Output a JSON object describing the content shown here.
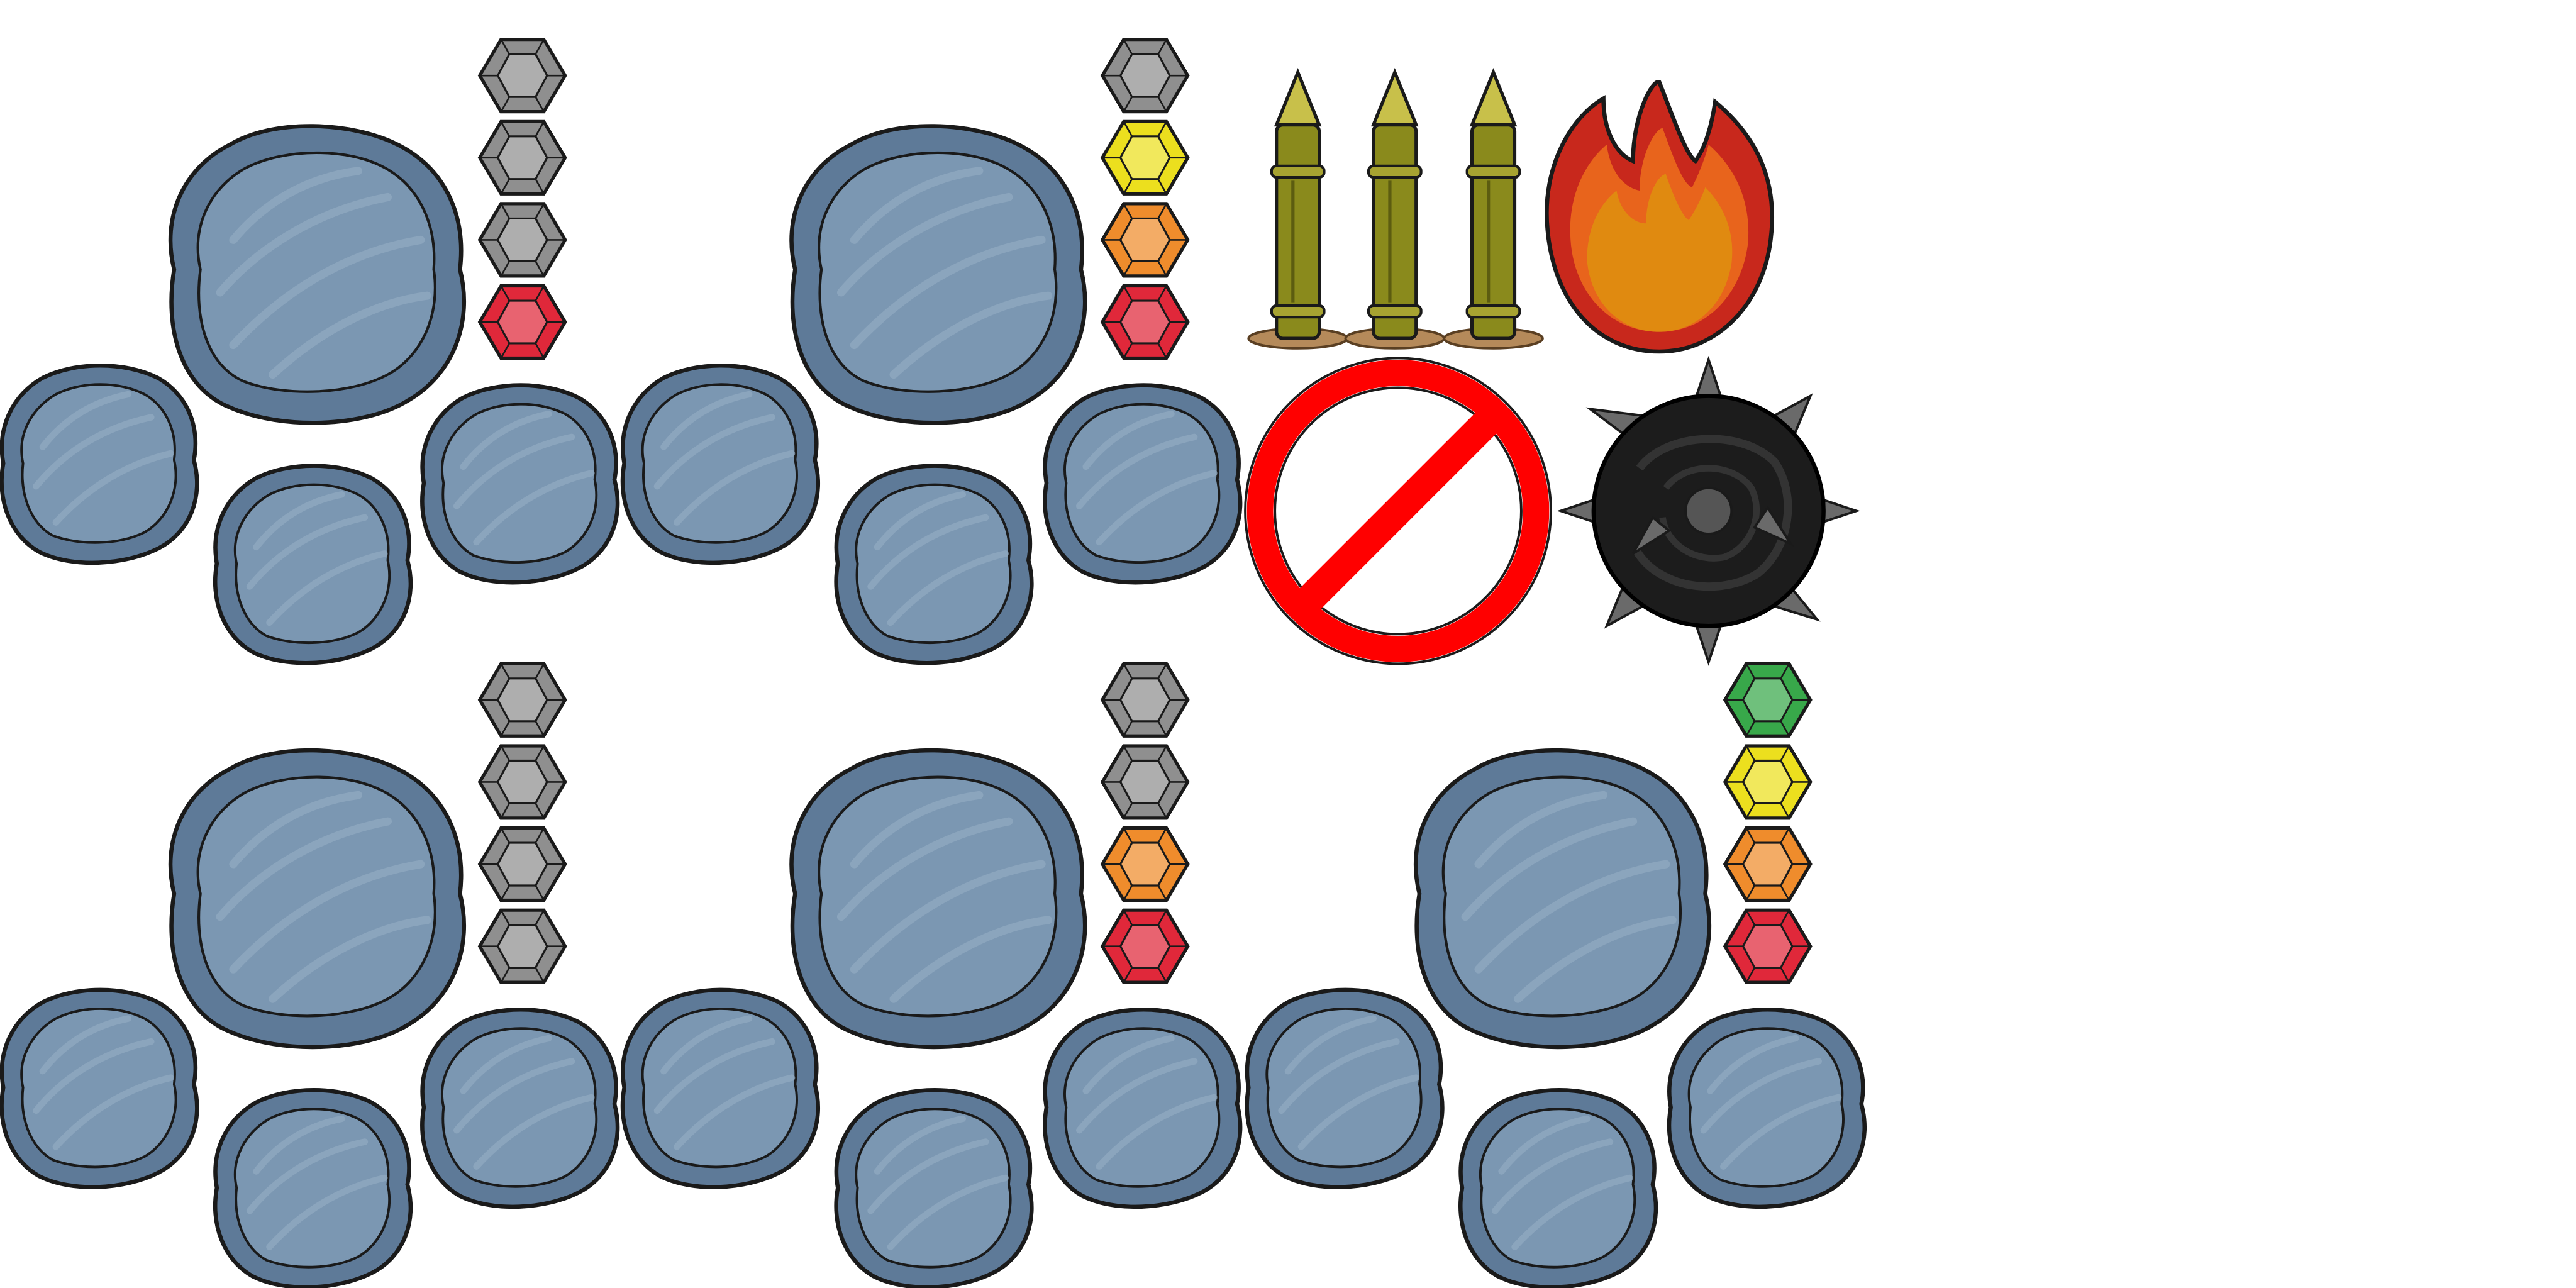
{
  "sprite_sheet": {
    "background": "#ffffff",
    "colors": {
      "stone_outer": "#5e7a98",
      "stone_inner": "#7b97b2",
      "stone_highlight": "#93abc2",
      "outline": "#1a1a1a",
      "gem_gray": "#8f8f8f",
      "gem_red": "#e0283a",
      "gem_orange": "#ef8c2c",
      "gem_yellow": "#ecdf1e",
      "gem_green": "#38a84a",
      "stake": "#8a8a1c",
      "stake_tip": "#c8c04a",
      "fire_outer": "#c8281c",
      "fire_middle": "#e8641c",
      "fire_inner": "#e08a10",
      "prohibited_red": "#ff0000",
      "mine_body": "#1c1c1c",
      "mine_spike": "#6a6a6a"
    },
    "stone_groups": [
      {
        "name": "stone-group-1",
        "gems": [
          "gray",
          "gray",
          "gray",
          "red"
        ],
        "level": 1
      },
      {
        "name": "stone-group-2",
        "gems": [
          "gray",
          "yellow",
          "orange",
          "red"
        ],
        "level": 3
      },
      {
        "name": "stone-group-3",
        "gems": [
          "gray",
          "gray",
          "gray",
          "gray"
        ],
        "level": 0
      },
      {
        "name": "stone-group-4",
        "gems": [
          "gray",
          "gray",
          "orange",
          "red"
        ],
        "level": 2
      },
      {
        "name": "stone-group-5",
        "gems": [
          "green",
          "yellow",
          "orange",
          "red"
        ],
        "level": 4
      }
    ],
    "icons": [
      "stake-icon",
      "stake-icon",
      "stake-icon",
      "fire-icon",
      "prohibited-icon",
      "spiked-mine-icon"
    ]
  }
}
